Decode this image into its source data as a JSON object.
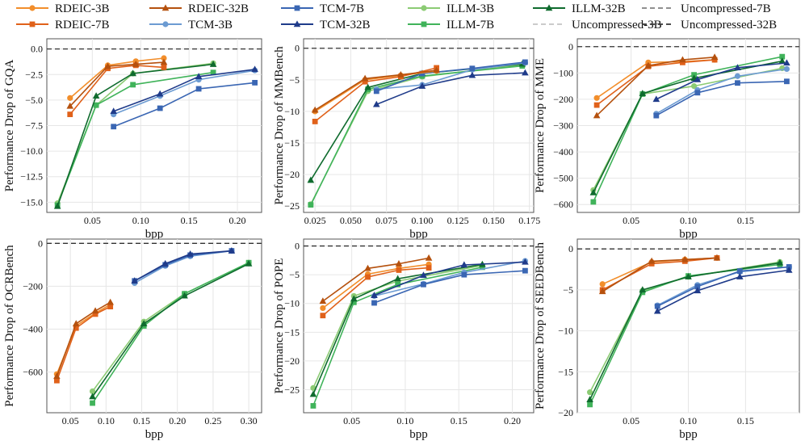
{
  "legend": [
    {
      "name": "RDEIC-3B",
      "color": "#F28E2B",
      "marker": "circle",
      "dash": false
    },
    {
      "name": "RDEIC-32B",
      "color": "#B5510E",
      "marker": "triangle",
      "dash": false
    },
    {
      "name": "TCM-7B",
      "color": "#3A66B3",
      "marker": "square",
      "dash": false
    },
    {
      "name": "ILLM-3B",
      "color": "#8CCB74",
      "marker": "circle",
      "dash": false
    },
    {
      "name": "ILLM-32B",
      "color": "#0F6B2E",
      "marker": "triangle",
      "dash": false
    },
    {
      "name": "Uncompressed-7B",
      "color": "#808080",
      "marker": "none",
      "dash": true
    },
    {
      "name": "RDEIC-7B",
      "color": "#E0611A",
      "marker": "square",
      "dash": false
    },
    {
      "name": "TCM-3B",
      "color": "#6C9BD2",
      "marker": "circle",
      "dash": false
    },
    {
      "name": "TCM-32B",
      "color": "#1F3B8A",
      "marker": "triangle",
      "dash": false
    },
    {
      "name": "ILLM-7B",
      "color": "#40B35A",
      "marker": "square",
      "dash": false
    },
    {
      "name": "Uncompressed-3B",
      "color": "#C4C4C4",
      "marker": "none",
      "dash": true
    },
    {
      "name": "Uncompressed-32B",
      "color": "#333333",
      "marker": "none",
      "dash": true
    }
  ],
  "chart_data": [
    {
      "type": "line",
      "xlabel": "bpp",
      "ylabel": "Performance Drop of GQA",
      "xlim": [
        0.003,
        0.225
      ],
      "ylim": [
        -16,
        1
      ],
      "xticks": [
        0.05,
        0.1,
        0.15,
        0.2
      ],
      "xtick_labels": [
        "0.05",
        "0.10",
        "0.15",
        "0.20"
      ],
      "yticks": [
        0,
        -2.5,
        -5,
        -7.5,
        -10,
        -12.5,
        -15
      ],
      "ytick_labels": [
        "0.0",
        "−2.5",
        "−5.0",
        "−7.5",
        "−10.0",
        "−12.5",
        "−15.0"
      ],
      "series": [
        {
          "name": "RDEIC-3B",
          "x": [
            0.027,
            0.066,
            0.095,
            0.124
          ],
          "y": [
            -4.8,
            -1.6,
            -1.2,
            -0.9
          ]
        },
        {
          "name": "RDEIC-7B",
          "x": [
            0.027,
            0.066,
            0.095,
            0.124
          ],
          "y": [
            -6.4,
            -1.9,
            -1.6,
            -1.8
          ]
        },
        {
          "name": "RDEIC-32B",
          "x": [
            0.027,
            0.066,
            0.095,
            0.124
          ],
          "y": [
            -5.6,
            -1.7,
            -1.5,
            -1.3
          ]
        },
        {
          "name": "TCM-3B",
          "x": [
            0.072,
            0.12,
            0.16,
            0.218
          ],
          "y": [
            -6.4,
            -4.6,
            -3.0,
            -2.1
          ]
        },
        {
          "name": "TCM-7B",
          "x": [
            0.072,
            0.12,
            0.16,
            0.218
          ],
          "y": [
            -7.6,
            -5.8,
            -3.9,
            -3.3
          ]
        },
        {
          "name": "TCM-32B",
          "x": [
            0.072,
            0.12,
            0.16,
            0.218
          ],
          "y": [
            -6.1,
            -4.4,
            -2.7,
            -2.0
          ]
        },
        {
          "name": "ILLM-3B",
          "x": [
            0.014,
            0.054,
            0.092,
            0.175
          ],
          "y": [
            -15.1,
            -5.5,
            -2.4,
            -1.4
          ]
        },
        {
          "name": "ILLM-7B",
          "x": [
            0.014,
            0.054,
            0.092,
            0.175
          ],
          "y": [
            -15.3,
            -5.5,
            -3.5,
            -2.3
          ]
        },
        {
          "name": "ILLM-32B",
          "x": [
            0.014,
            0.054,
            0.092,
            0.175
          ],
          "y": [
            -15.4,
            -4.6,
            -2.4,
            -1.5
          ]
        }
      ]
    },
    {
      "type": "line",
      "xlabel": "bpp",
      "ylabel": "Performance Drop of MMBench",
      "xlim": [
        0.017,
        0.178
      ],
      "ylim": [
        -26,
        1.5
      ],
      "xticks": [
        0.025,
        0.05,
        0.075,
        0.1,
        0.125,
        0.15,
        0.175
      ],
      "xtick_labels": [
        "0.025",
        "0.050",
        "0.075",
        "0.100",
        "0.125",
        "0.150",
        "0.175"
      ],
      "yticks": [
        0,
        -5,
        -10,
        -15,
        -20,
        -25
      ],
      "ytick_labels": [
        "0",
        "−5",
        "−10",
        "−15",
        "−20",
        "−25"
      ],
      "series": [
        {
          "name": "RDEIC-3B",
          "x": [
            0.025,
            0.06,
            0.085,
            0.11
          ],
          "y": [
            -10.0,
            -5.0,
            -4.3,
            -3.6
          ]
        },
        {
          "name": "RDEIC-7B",
          "x": [
            0.025,
            0.06,
            0.085,
            0.11
          ],
          "y": [
            -11.6,
            -5.3,
            -4.5,
            -3.1
          ]
        },
        {
          "name": "RDEIC-32B",
          "x": [
            0.025,
            0.06,
            0.085,
            0.11
          ],
          "y": [
            -9.8,
            -4.8,
            -4.2,
            -3.5
          ]
        },
        {
          "name": "TCM-3B",
          "x": [
            0.068,
            0.1,
            0.135,
            0.172
          ],
          "y": [
            -6.5,
            -5.8,
            -3.4,
            -2.3
          ]
        },
        {
          "name": "TCM-7B",
          "x": [
            0.068,
            0.1,
            0.135,
            0.172
          ],
          "y": [
            -6.8,
            -4.0,
            -3.2,
            -2.2
          ]
        },
        {
          "name": "TCM-32B",
          "x": [
            0.068,
            0.1,
            0.135,
            0.172
          ],
          "y": [
            -8.9,
            -6.0,
            -4.3,
            -3.9
          ]
        },
        {
          "name": "ILLM-3B",
          "x": [
            0.022,
            0.062,
            0.1,
            0.17
          ],
          "y": [
            -24.7,
            -6.8,
            -4.5,
            -2.6
          ]
        },
        {
          "name": "ILLM-7B",
          "x": [
            0.022,
            0.062,
            0.1,
            0.17
          ],
          "y": [
            -24.8,
            -6.5,
            -4.4,
            -2.8
          ]
        },
        {
          "name": "ILLM-32B",
          "x": [
            0.022,
            0.062,
            0.1,
            0.17
          ],
          "y": [
            -20.9,
            -6.2,
            -4.0,
            -2.5
          ]
        }
      ]
    },
    {
      "type": "line",
      "xlabel": "bpp",
      "ylabel": "Performance Drop of MME",
      "xlim": [
        0.003,
        0.197
      ],
      "ylim": [
        -630,
        30
      ],
      "xticks": [
        0.05,
        0.1,
        0.15
      ],
      "xtick_labels": [
        "0.05",
        "0.10",
        "0.15"
      ],
      "yticks": [
        0,
        -100,
        -200,
        -300,
        -400,
        -500,
        -600
      ],
      "ytick_labels": [
        "0",
        "−100",
        "−200",
        "−300",
        "−400",
        "−500",
        "−600"
      ],
      "series": [
        {
          "name": "RDEIC-3B",
          "x": [
            0.02,
            0.065,
            0.095,
            0.123
          ],
          "y": [
            -195,
            -60,
            -57,
            -50
          ]
        },
        {
          "name": "RDEIC-7B",
          "x": [
            0.02,
            0.065,
            0.095,
            0.123
          ],
          "y": [
            -222,
            -75,
            -60,
            -50
          ]
        },
        {
          "name": "RDEIC-32B",
          "x": [
            0.02,
            0.065,
            0.095,
            0.123
          ],
          "y": [
            -262,
            -72,
            -50,
            -40
          ]
        },
        {
          "name": "TCM-3B",
          "x": [
            0.072,
            0.108,
            0.143,
            0.186
          ],
          "y": [
            -255,
            -165,
            -112,
            -85
          ]
        },
        {
          "name": "TCM-7B",
          "x": [
            0.072,
            0.108,
            0.143,
            0.186
          ],
          "y": [
            -262,
            -175,
            -138,
            -132
          ]
        },
        {
          "name": "TCM-32B",
          "x": [
            0.072,
            0.108,
            0.143,
            0.186
          ],
          "y": [
            -200,
            -125,
            -80,
            -62
          ]
        },
        {
          "name": "ILLM-3B",
          "x": [
            0.017,
            0.06,
            0.105,
            0.182
          ],
          "y": [
            -545,
            -180,
            -150,
            -82
          ]
        },
        {
          "name": "ILLM-7B",
          "x": [
            0.017,
            0.06,
            0.105,
            0.182
          ],
          "y": [
            -590,
            -180,
            -107,
            -38
          ]
        },
        {
          "name": "ILLM-32B",
          "x": [
            0.017,
            0.06,
            0.105,
            0.182
          ],
          "y": [
            -555,
            -178,
            -120,
            -55
          ]
        }
      ]
    },
    {
      "type": "line",
      "xlabel": "bpp",
      "ylabel": "Performance Drop of OCRBench",
      "xlim": [
        0.017,
        0.318
      ],
      "ylim": [
        -790,
        20
      ],
      "xticks": [
        0.05,
        0.1,
        0.15,
        0.2,
        0.25,
        0.3
      ],
      "xtick_labels": [
        "0.05",
        "0.10",
        "0.15",
        "0.20",
        "0.25",
        "0.30"
      ],
      "yticks": [
        0,
        -200,
        -400,
        -600
      ],
      "ytick_labels": [
        "0",
        "−200",
        "−400",
        "−600"
      ],
      "series": [
        {
          "name": "RDEIC-3B",
          "x": [
            0.031,
            0.058,
            0.085,
            0.106
          ],
          "y": [
            -610,
            -385,
            -325,
            -285
          ]
        },
        {
          "name": "RDEIC-7B",
          "x": [
            0.031,
            0.058,
            0.085,
            0.106
          ],
          "y": [
            -640,
            -395,
            -330,
            -295
          ]
        },
        {
          "name": "RDEIC-32B",
          "x": [
            0.031,
            0.058,
            0.085,
            0.106
          ],
          "y": [
            -620,
            -375,
            -315,
            -275
          ]
        },
        {
          "name": "TCM-3B",
          "x": [
            0.14,
            0.183,
            0.218,
            0.276
          ],
          "y": [
            -185,
            -105,
            -60,
            -35
          ]
        },
        {
          "name": "TCM-7B",
          "x": [
            0.14,
            0.183,
            0.218,
            0.276
          ],
          "y": [
            -175,
            -100,
            -55,
            -35
          ]
        },
        {
          "name": "TCM-32B",
          "x": [
            0.14,
            0.183,
            0.218,
            0.276
          ],
          "y": [
            -175,
            -95,
            -50,
            -35
          ]
        },
        {
          "name": "ILLM-3B",
          "x": [
            0.081,
            0.153,
            0.21,
            0.3
          ],
          "y": [
            -690,
            -365,
            -235,
            -90
          ]
        },
        {
          "name": "ILLM-7B",
          "x": [
            0.081,
            0.153,
            0.21,
            0.3
          ],
          "y": [
            -745,
            -385,
            -235,
            -90
          ]
        },
        {
          "name": "ILLM-32B",
          "x": [
            0.081,
            0.153,
            0.21,
            0.3
          ],
          "y": [
            -715,
            -375,
            -245,
            -95
          ]
        }
      ]
    },
    {
      "type": "line",
      "xlabel": "bpp",
      "ylabel": "Performance Drop of POPE",
      "xlim": [
        0.005,
        0.22
      ],
      "ylim": [
        -29,
        1.2
      ],
      "xticks": [
        0.05,
        0.1,
        0.15,
        0.2
      ],
      "xtick_labels": [
        "0.05",
        "0.10",
        "0.15",
        "0.20"
      ],
      "yticks": [
        0,
        -5,
        -10,
        -15,
        -20,
        -25
      ],
      "ytick_labels": [
        "0",
        "−5",
        "−10",
        "−15",
        "−20",
        "−25"
      ],
      "series": [
        {
          "name": "RDEIC-3B",
          "x": [
            0.023,
            0.065,
            0.094,
            0.122
          ],
          "y": [
            -10.8,
            -4.9,
            -3.9,
            -3.2
          ]
        },
        {
          "name": "RDEIC-7B",
          "x": [
            0.023,
            0.065,
            0.094,
            0.122
          ],
          "y": [
            -12.1,
            -5.4,
            -4.2,
            -3.8
          ]
        },
        {
          "name": "RDEIC-32B",
          "x": [
            0.023,
            0.065,
            0.094,
            0.122
          ],
          "y": [
            -9.6,
            -3.9,
            -3.1,
            -2.1
          ]
        },
        {
          "name": "TCM-3B",
          "x": [
            0.071,
            0.117,
            0.155,
            0.212
          ],
          "y": [
            -8.7,
            -6.6,
            -4.6,
            -2.6
          ]
        },
        {
          "name": "TCM-7B",
          "x": [
            0.071,
            0.117,
            0.155,
            0.212
          ],
          "y": [
            -9.9,
            -6.7,
            -5.0,
            -4.3
          ]
        },
        {
          "name": "TCM-32B",
          "x": [
            0.071,
            0.117,
            0.155,
            0.212
          ],
          "y": [
            -8.6,
            -5.1,
            -3.3,
            -2.8
          ]
        },
        {
          "name": "ILLM-3B",
          "x": [
            0.014,
            0.052,
            0.093,
            0.172
          ],
          "y": [
            -24.7,
            -8.7,
            -6.1,
            -3.4
          ]
        },
        {
          "name": "ILLM-7B",
          "x": [
            0.014,
            0.052,
            0.093,
            0.172
          ],
          "y": [
            -27.8,
            -9.8,
            -6.7,
            -3.7
          ]
        },
        {
          "name": "ILLM-32B",
          "x": [
            0.014,
            0.052,
            0.093,
            0.172
          ],
          "y": [
            -25.8,
            -9.2,
            -5.7,
            -3.2
          ]
        }
      ]
    },
    {
      "type": "line",
      "xlabel": "bpp",
      "ylabel": "Performance Drop of SEEDBench",
      "xlim": [
        0.003,
        0.197
      ],
      "ylim": [
        -20,
        1.2
      ],
      "xticks": [
        0.05,
        0.1,
        0.15
      ],
      "xtick_labels": [
        "0.05",
        "0.10",
        "0.15"
      ],
      "yticks": [
        0,
        -5,
        -10,
        -15,
        -20
      ],
      "ytick_labels": [
        "0",
        "−5",
        "−10",
        "−15",
        "−20"
      ],
      "series": [
        {
          "name": "RDEIC-3B",
          "x": [
            0.025,
            0.068,
            0.097,
            0.125
          ],
          "y": [
            -4.3,
            -1.6,
            -1.3,
            -1.1
          ]
        },
        {
          "name": "RDEIC-7B",
          "x": [
            0.025,
            0.068,
            0.097,
            0.125
          ],
          "y": [
            -5.0,
            -1.8,
            -1.5,
            -1.1
          ]
        },
        {
          "name": "RDEIC-32B",
          "x": [
            0.025,
            0.068,
            0.097,
            0.125
          ],
          "y": [
            -5.2,
            -1.5,
            -1.3,
            -1.1
          ]
        },
        {
          "name": "TCM-3B",
          "x": [
            0.073,
            0.108,
            0.145,
            0.188
          ],
          "y": [
            -6.9,
            -4.4,
            -2.8,
            -2.2
          ]
        },
        {
          "name": "TCM-7B",
          "x": [
            0.073,
            0.108,
            0.145,
            0.188
          ],
          "y": [
            -7.0,
            -4.6,
            -2.7,
            -2.2
          ]
        },
        {
          "name": "TCM-32B",
          "x": [
            0.073,
            0.108,
            0.145,
            0.188
          ],
          "y": [
            -7.6,
            -5.1,
            -3.4,
            -2.6
          ]
        },
        {
          "name": "ILLM-3B",
          "x": [
            0.014,
            0.06,
            0.1,
            0.18
          ],
          "y": [
            -17.5,
            -5.1,
            -3.4,
            -1.6
          ]
        },
        {
          "name": "ILLM-7B",
          "x": [
            0.014,
            0.06,
            0.1,
            0.18
          ],
          "y": [
            -19.0,
            -5.3,
            -3.3,
            -1.9
          ]
        },
        {
          "name": "ILLM-32B",
          "x": [
            0.014,
            0.06,
            0.1,
            0.18
          ],
          "y": [
            -18.4,
            -5.0,
            -3.4,
            -1.7
          ]
        }
      ]
    }
  ]
}
